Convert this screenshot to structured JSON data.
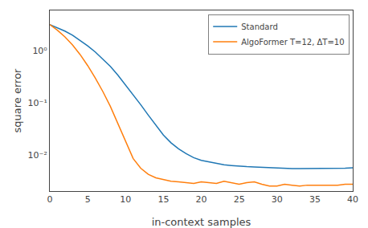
{
  "chart_data": {
    "type": "line",
    "xlabel": "in-context samples",
    "ylabel": "square error",
    "log": "y",
    "grid": false,
    "legend": "upper right",
    "xlim": [
      0,
      40
    ],
    "xticks": [
      0,
      5,
      10,
      15,
      20,
      25,
      30,
      35,
      40
    ],
    "ylim": [
      0.002,
      6.0
    ],
    "yticks": [
      {
        "value": 0.01,
        "label": "10⁻²"
      },
      {
        "value": 0.1,
        "label": "10⁻¹"
      },
      {
        "value": 1,
        "label": "10⁰"
      }
    ],
    "series": [
      {
        "name": "Standard",
        "color": "#1f77b4",
        "x": [
          0,
          1,
          2,
          3,
          4,
          5,
          6,
          7,
          8,
          9,
          10,
          11,
          12,
          13,
          14,
          15,
          16,
          17,
          18,
          19,
          20,
          21,
          22,
          23,
          24,
          25,
          26,
          27,
          28,
          29,
          30,
          31,
          32,
          33,
          34,
          35,
          36,
          37,
          38,
          39,
          40
        ],
        "values": [
          3.2,
          2.8,
          2.4,
          2.0,
          1.6,
          1.25,
          0.95,
          0.7,
          0.5,
          0.34,
          0.22,
          0.145,
          0.092,
          0.058,
          0.037,
          0.024,
          0.017,
          0.013,
          0.0105,
          0.0088,
          0.0078,
          0.0073,
          0.0068,
          0.0064,
          0.0062,
          0.006,
          0.0059,
          0.0058,
          0.0057,
          0.0056,
          0.0055,
          0.0055,
          0.0054,
          0.0054,
          0.0054,
          0.0054,
          0.0054,
          0.0054,
          0.0054,
          0.0055,
          0.0056
        ]
      },
      {
        "name": "AlgoFormer T=12, ΔT=10",
        "color": "#ff7f0e",
        "x": [
          0,
          1,
          2,
          3,
          4,
          5,
          6,
          7,
          8,
          9,
          10,
          11,
          12,
          13,
          14,
          15,
          16,
          17,
          18,
          19,
          20,
          21,
          22,
          23,
          24,
          25,
          26,
          27,
          28,
          29,
          30,
          31,
          32,
          33,
          34,
          35,
          36,
          37,
          38,
          39,
          40
        ],
        "values": [
          3.2,
          2.5,
          1.85,
          1.3,
          0.85,
          0.52,
          0.3,
          0.165,
          0.085,
          0.04,
          0.018,
          0.0085,
          0.0055,
          0.0042,
          0.0036,
          0.0033,
          0.0031,
          0.003,
          0.0029,
          0.0028,
          0.003,
          0.0029,
          0.0028,
          0.0031,
          0.0029,
          0.0027,
          0.0029,
          0.003,
          0.0027,
          0.0025,
          0.0025,
          0.0027,
          0.0026,
          0.0025,
          0.0026,
          0.0026,
          0.0026,
          0.0026,
          0.0026,
          0.0027,
          0.0027
        ]
      }
    ]
  }
}
